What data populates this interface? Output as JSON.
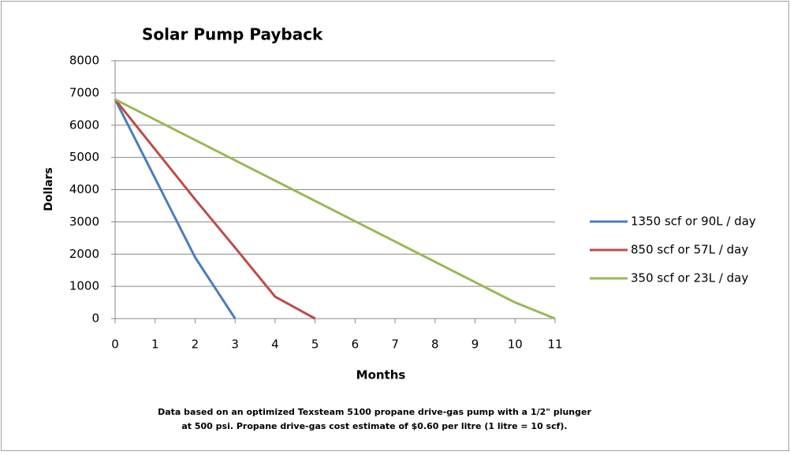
{
  "chart_data": {
    "type": "line",
    "title": "Solar Pump Payback",
    "x_label": "Months",
    "y_label": "Dollars",
    "x": [
      0,
      1,
      2,
      3,
      4,
      5,
      6,
      7,
      8,
      9,
      10,
      11
    ],
    "series": [
      {
        "name": "1350 scf or 90L / day",
        "color": "#4a7ebb",
        "values": [
          6800,
          4350,
          1900,
          0,
          null,
          null,
          null,
          null,
          null,
          null,
          null,
          null
        ]
      },
      {
        "name": "850 scf or 57L / day",
        "color": "#be4b48",
        "values": [
          6800,
          5250,
          3700,
          2200,
          680,
          0,
          null,
          null,
          null,
          null,
          null,
          null
        ]
      },
      {
        "name": "350 scf or 23L / day",
        "color": "#98b954",
        "values": [
          6800,
          6170,
          5540,
          4910,
          4280,
          3650,
          3020,
          2390,
          1760,
          1130,
          500,
          0
        ]
      }
    ],
    "xlim": [
      0,
      11
    ],
    "xticks": [
      0,
      1,
      2,
      3,
      4,
      5,
      6,
      7,
      8,
      9,
      10,
      11
    ],
    "ylim": [
      0,
      8000
    ],
    "yticks": [
      0,
      1000,
      2000,
      3000,
      4000,
      5000,
      6000,
      7000,
      8000
    ],
    "grid": true,
    "legend": "right",
    "notes": [
      "Data based on an optimized Texsteam 5100 propane drive-gas pump with a 1/2\" plunger",
      "at 500 psi.  Propane drive-gas cost estimate of $0.60 per litre (1 litre = 10 scf)."
    ]
  }
}
